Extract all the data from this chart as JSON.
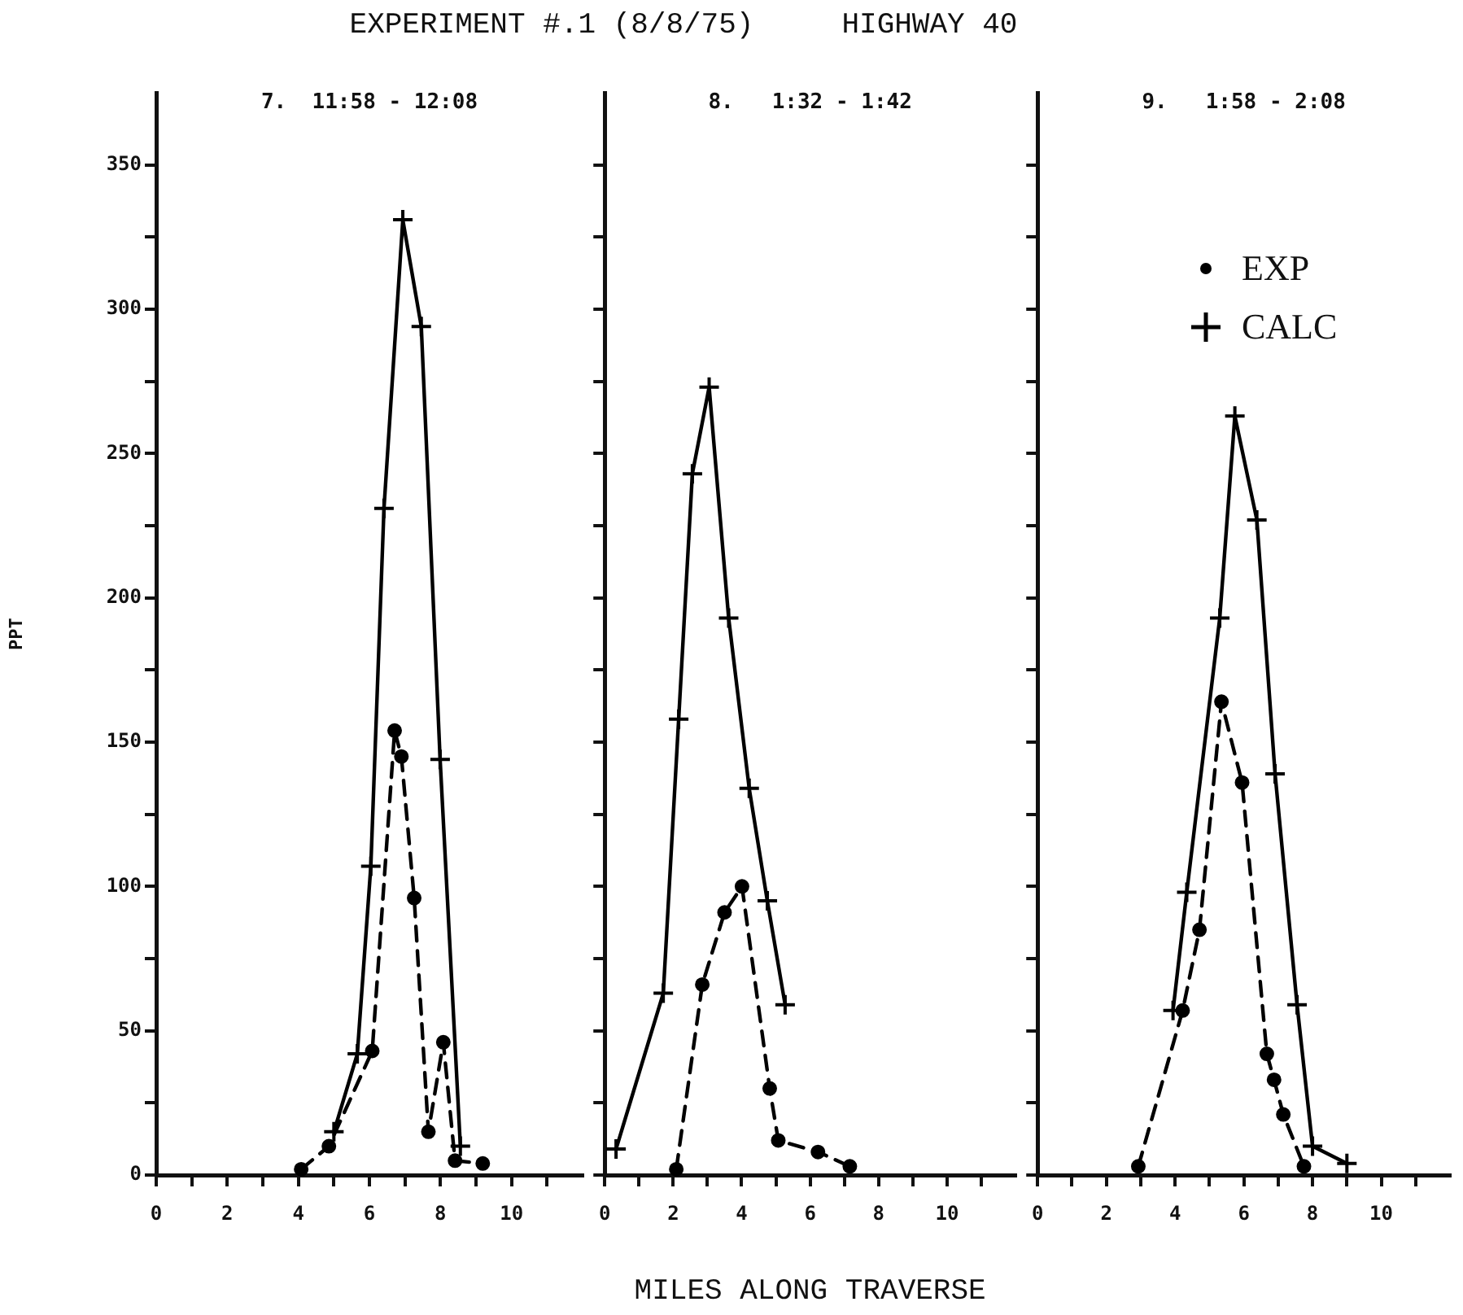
{
  "chart_data": [
    {
      "type": "line",
      "subtitle": "7.  11:58 - 12:08",
      "ylabel": "PPT",
      "xlim": [
        0,
        12
      ],
      "xticks": [
        0,
        {
          "value": 1,
          "label": null
        },
        2,
        {
          "value": 3,
          "label": null
        },
        4,
        {
          "value": 5,
          "label": null
        },
        6,
        {
          "value": 7,
          "label": null
        },
        8,
        {
          "value": 9,
          "label": null
        },
        10,
        {
          "value": 11,
          "label": null
        }
      ],
      "ylim": [
        0,
        375
      ],
      "yticks": [
        0,
        {
          "value": 25,
          "label": null
        },
        50,
        {
          "value": 75,
          "label": null
        },
        100,
        {
          "value": 125,
          "label": null
        },
        150,
        {
          "value": 175,
          "label": null
        },
        200,
        {
          "value": 225,
          "label": null
        },
        250,
        {
          "value": 275,
          "label": null
        },
        300,
        {
          "value": 325,
          "label": null
        },
        350
      ],
      "grid": false,
      "series": [
        {
          "color": "#000000",
          "marker": "circle",
          "line_style": "dashed",
          "x": [
            4.08,
            4.86,
            6.08,
            6.71,
            6.9,
            7.26,
            7.66,
            8.08,
            8.41,
            9.19
          ],
          "values": [
            2,
            10,
            43,
            154,
            145,
            96,
            15,
            46,
            5,
            4
          ]
        },
        {
          "color": "#000000",
          "marker": "cross",
          "line_style": "solid",
          "x": [
            5.0,
            5.66,
            6.04,
            6.41,
            6.94,
            7.46,
            7.99,
            8.56
          ],
          "values": [
            15,
            42,
            107,
            231,
            331,
            294,
            144,
            10
          ]
        }
      ]
    },
    {
      "type": "line",
      "title": "EXPERIMENT #.1 (8/8/75)     HIGHWAY 40",
      "subtitle": "8.   1:32 - 1:42",
      "xlabel": "MILES ALONG TRAVERSE",
      "xlim": [
        0,
        12
      ],
      "xticks": [
        0,
        {
          "value": 1,
          "label": null
        },
        2,
        {
          "value": 3,
          "label": null
        },
        4,
        {
          "value": 5,
          "label": null
        },
        6,
        {
          "value": 7,
          "label": null
        },
        8,
        {
          "value": 9,
          "label": null
        },
        10,
        {
          "value": 11,
          "label": null
        }
      ],
      "ylim": [
        0,
        375
      ],
      "yticks": [
        0,
        {
          "value": 25,
          "label": null
        },
        50,
        {
          "value": 75,
          "label": null
        },
        100,
        {
          "value": 125,
          "label": null
        },
        150,
        {
          "value": 175,
          "label": null
        },
        200,
        {
          "value": 225,
          "label": null
        },
        250,
        {
          "value": 275,
          "label": null
        },
        300,
        {
          "value": 325,
          "label": null
        },
        350
      ],
      "tick_labels": "x",
      "grid": false,
      "series": [
        {
          "color": "#000000",
          "marker": "circle",
          "line_style": "dashed",
          "x": [
            2.09,
            2.85,
            3.5,
            4.01,
            4.82,
            5.07,
            6.23,
            7.16
          ],
          "values": [
            2,
            66,
            91,
            100,
            30,
            12,
            8,
            3
          ]
        },
        {
          "color": "#000000",
          "marker": "cross",
          "line_style": "solid",
          "x": [
            0.33,
            1.71,
            2.16,
            2.56,
            3.05,
            3.62,
            4.22,
            4.75,
            5.27
          ],
          "values": [
            9,
            63,
            158,
            243,
            273,
            193,
            134,
            95,
            59
          ]
        }
      ]
    },
    {
      "type": "line",
      "subtitle": "9.   1:58 - 2:08",
      "xlim": [
        0,
        12
      ],
      "xticks": [
        0,
        {
          "value": 1,
          "label": null
        },
        2,
        {
          "value": 3,
          "label": null
        },
        4,
        {
          "value": 5,
          "label": null
        },
        6,
        {
          "value": 7,
          "label": null
        },
        8,
        {
          "value": 9,
          "label": null
        },
        10,
        {
          "value": 11,
          "label": null
        }
      ],
      "ylim": [
        0,
        375
      ],
      "yticks": [
        0,
        {
          "value": 25,
          "label": null
        },
        50,
        {
          "value": 75,
          "label": null
        },
        100,
        {
          "value": 125,
          "label": null
        },
        150,
        {
          "value": 175,
          "label": null
        },
        200,
        {
          "value": 225,
          "label": null
        },
        250,
        {
          "value": 275,
          "label": null
        },
        300,
        {
          "value": 325,
          "label": null
        },
        350
      ],
      "tick_labels": "x",
      "grid": false,
      "legend": "top right",
      "series": [
        {
          "name": "EXP",
          "color": "#000000",
          "marker": "circle",
          "line_style": "dashed",
          "x": [
            2.93,
            4.22,
            4.71,
            5.35,
            5.95,
            6.67,
            6.88,
            7.15,
            7.75
          ],
          "values": [
            3,
            57,
            85,
            164,
            136,
            42,
            33,
            21,
            3
          ]
        },
        {
          "name": "CALC",
          "color": "#000000",
          "marker": "cross",
          "line_style": "solid",
          "x": [
            3.94,
            4.34,
            5.3,
            5.74,
            6.38,
            6.91,
            7.55,
            8.0,
            9.0
          ],
          "values": [
            57,
            98,
            193,
            263,
            227,
            139,
            59,
            10,
            4
          ]
        }
      ]
    }
  ]
}
